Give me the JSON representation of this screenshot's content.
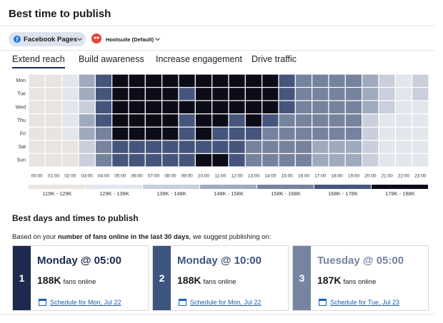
{
  "header": {
    "title": "Best time to publish"
  },
  "filters": {
    "network": "Facebook Pages",
    "profile": "Hootsuite (Default)"
  },
  "tabs": [
    {
      "label": "Extend reach",
      "active": true
    },
    {
      "label": "Build awareness",
      "active": false
    },
    {
      "label": "Increase engagement",
      "active": false
    },
    {
      "label": "Drive traffic",
      "active": false
    }
  ],
  "heatmap": {
    "days": [
      "Mon",
      "Tue",
      "Wed",
      "Thu",
      "Fri",
      "Sat",
      "Sun"
    ],
    "hours": [
      "00:00",
      "01:00",
      "02:00",
      "03:00",
      "04:00",
      "05:00",
      "06:00",
      "07:00",
      "08:00",
      "09:00",
      "10:00",
      "11:00",
      "12:00",
      "13:00",
      "14:00",
      "15:00",
      "16:00",
      "17:00",
      "18:00",
      "19:00",
      "20:00",
      "21:00",
      "22:00",
      "23:00"
    ],
    "legend": [
      {
        "label": "119K - 129K",
        "color": "#e8e4df"
      },
      {
        "label": "129K - 139K",
        "color": "#e3e6ec"
      },
      {
        "label": "139K - 148K",
        "color": "#c9cfdb"
      },
      {
        "label": "148K - 158K",
        "color": "#a0aabf"
      },
      {
        "label": "158K - 168K",
        "color": "#76839f"
      },
      {
        "label": "168K - 178K",
        "color": "#45557d"
      },
      {
        "label": "178K - 188K",
        "color": "#0b0c18"
      }
    ],
    "levels": [
      [
        0,
        0,
        1,
        3,
        5,
        6,
        6,
        6,
        6,
        6,
        6,
        6,
        6,
        6,
        6,
        5,
        4,
        4,
        4,
        4,
        3,
        2,
        1,
        2
      ],
      [
        0,
        0,
        1,
        3,
        5,
        6,
        6,
        6,
        6,
        5,
        6,
        6,
        6,
        6,
        6,
        5,
        4,
        4,
        4,
        4,
        3,
        2,
        1,
        2
      ],
      [
        0,
        0,
        1,
        2,
        5,
        6,
        6,
        6,
        6,
        6,
        6,
        6,
        6,
        6,
        6,
        5,
        4,
        4,
        4,
        4,
        3,
        2,
        1,
        1
      ],
      [
        0,
        0,
        1,
        3,
        5,
        6,
        6,
        6,
        6,
        5,
        6,
        6,
        5,
        6,
        5,
        4,
        4,
        4,
        4,
        4,
        2,
        1,
        1,
        1
      ],
      [
        0,
        0,
        1,
        3,
        4,
        6,
        6,
        6,
        6,
        5,
        6,
        5,
        5,
        5,
        4,
        4,
        4,
        4,
        4,
        4,
        2,
        1,
        1,
        1
      ],
      [
        0,
        0,
        0,
        2,
        4,
        5,
        5,
        5,
        5,
        5,
        5,
        5,
        5,
        4,
        4,
        4,
        4,
        3,
        3,
        3,
        2,
        1,
        1,
        1
      ],
      [
        0,
        0,
        0,
        2,
        4,
        5,
        5,
        5,
        5,
        5,
        6,
        6,
        5,
        4,
        4,
        4,
        4,
        3,
        3,
        3,
        2,
        1,
        1,
        1
      ]
    ]
  },
  "recommendations": {
    "title": "Best days and times to publish",
    "intro_prefix": "Based on your ",
    "intro_bold": "number of fans online in the last 30 days",
    "intro_suffix": ", we suggest publishing on:",
    "cards": [
      {
        "rank": 1,
        "time": "Monday @ 05:00",
        "fans": "188K",
        "fans_label": "fans online",
        "link": "Schedule for Mon, Jul 22",
        "color": "#1b2a4e"
      },
      {
        "rank": 2,
        "time": "Monday @ 10:00",
        "fans": "188K",
        "fans_label": "fans online",
        "link": "Schedule for Mon, Jul 22",
        "color": "#3e5480"
      },
      {
        "rank": 3,
        "time": "Tuesday @ 05:00",
        "fans": "187K",
        "fans_label": "fans online",
        "link": "Schedule for Tue, Jul 23",
        "color": "#7684a1"
      }
    ]
  }
}
